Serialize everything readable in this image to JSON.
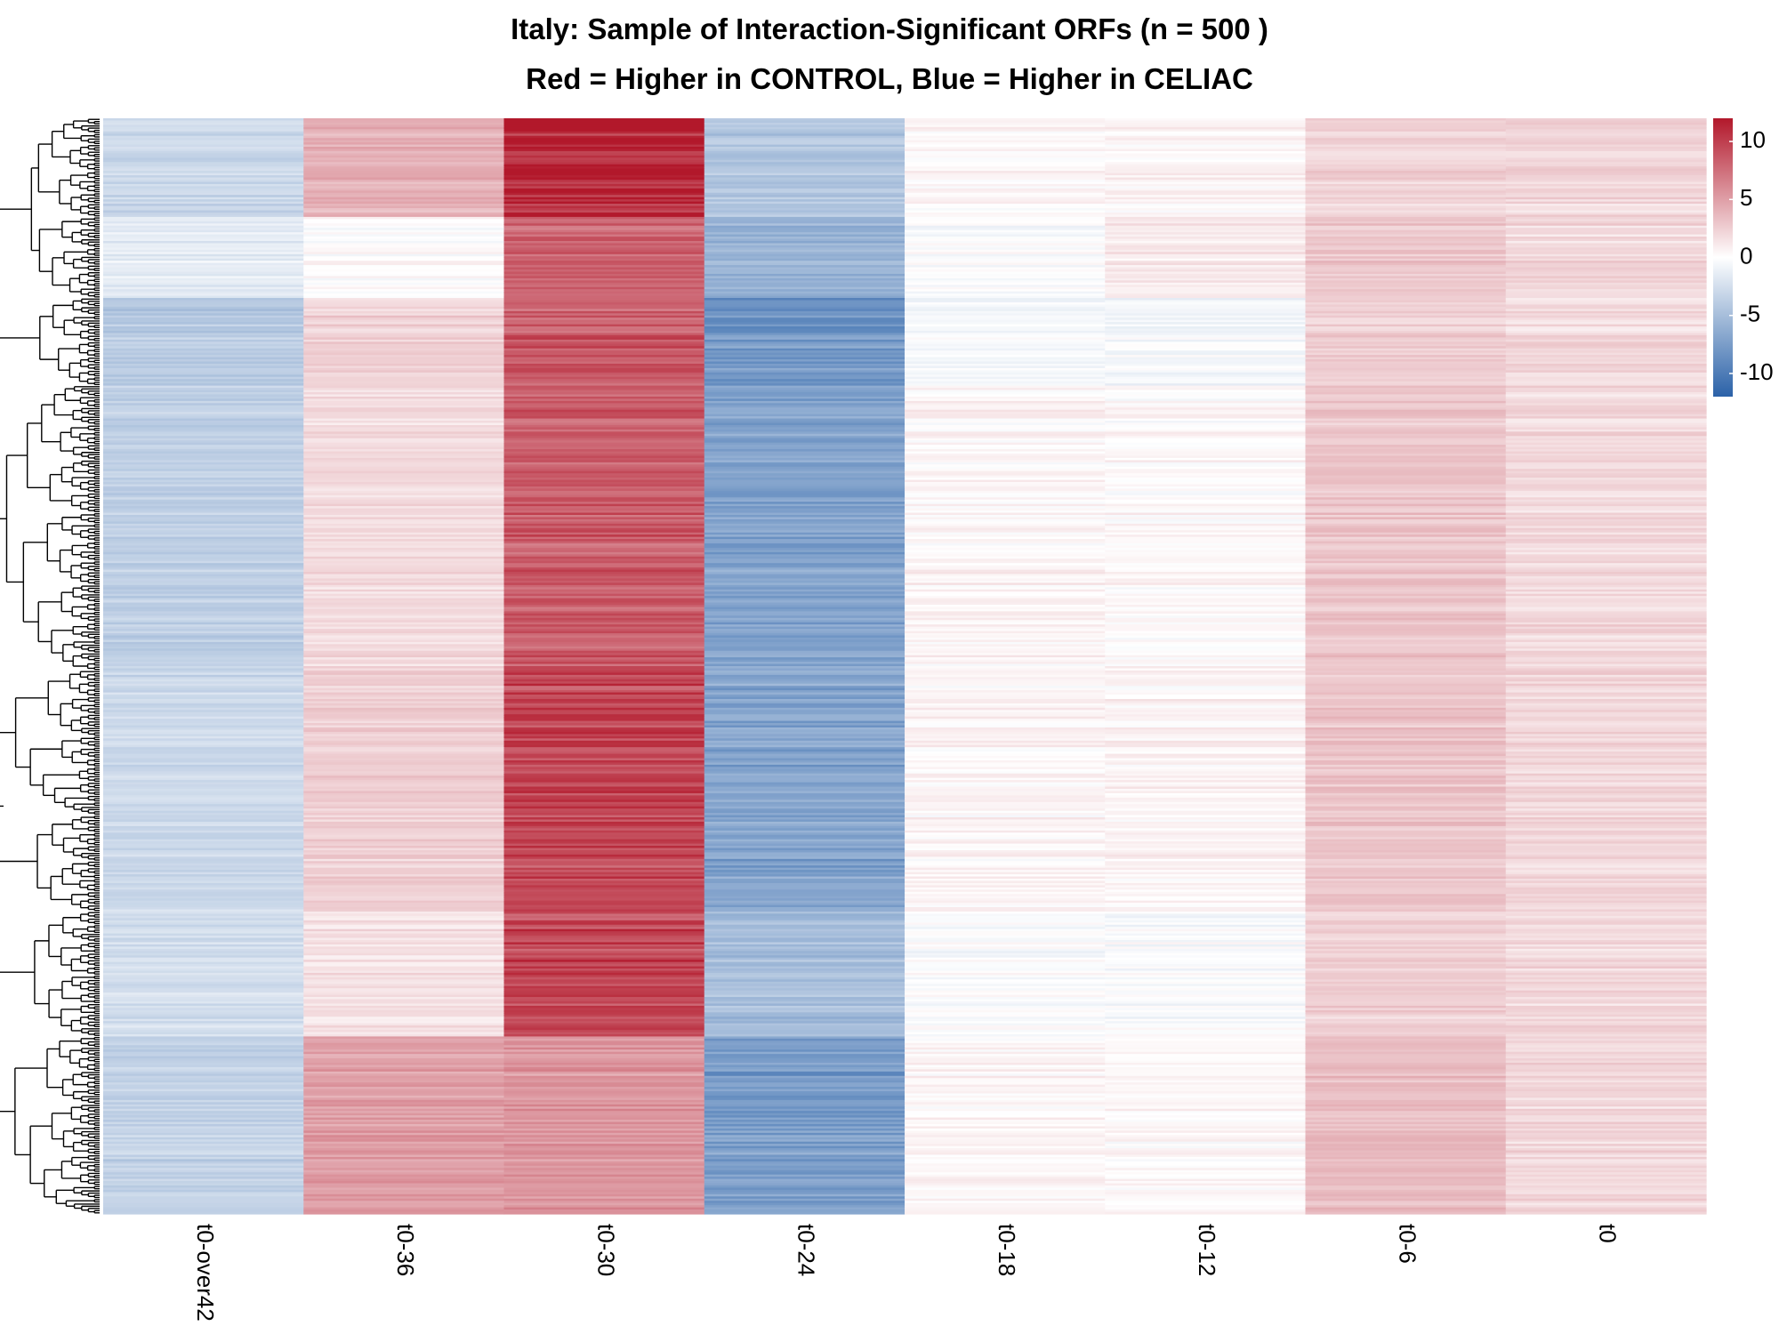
{
  "chart_data": {
    "type": "heatmap",
    "title": "Italy: Sample of Interaction-Significant ORFs (n = 500 )",
    "subtitle": "Red = Higher in CONTROL, Blue = Higher in CELIAC",
    "columns": [
      "t0-over42",
      "t0-36",
      "t0-30",
      "t0-24",
      "t0-18",
      "t0-12",
      "t0-6",
      "t0"
    ],
    "n_rows": 500,
    "color_scale": {
      "min": -12,
      "max": 12,
      "low_color": "#2b62a8",
      "mid_color": "#ffffff",
      "high_color": "#b2182b",
      "ticks": [
        10,
        5,
        0,
        -5,
        -10
      ],
      "tick_labels": [
        "10",
        "5",
        "0",
        "-5",
        "-10"
      ]
    },
    "row_clusters": [
      {
        "rows": 45,
        "values": [
          -3.0,
          4.0,
          11.0,
          -4.5,
          0.3,
          0.5,
          2.2,
          2.0
        ]
      },
      {
        "rows": 37,
        "values": [
          -1.5,
          0.0,
          8.0,
          -6.0,
          -0.3,
          1.0,
          2.8,
          2.0
        ]
      },
      {
        "rows": 40,
        "values": [
          -4.0,
          2.5,
          8.5,
          -8.0,
          -0.5,
          -0.5,
          2.5,
          2.0
        ]
      },
      {
        "rows": 130,
        "values": [
          -3.5,
          2.0,
          8.5,
          -7.0,
          0.5,
          0.3,
          3.0,
          2.0
        ]
      },
      {
        "rows": 110,
        "values": [
          -3.0,
          2.5,
          9.5,
          -7.0,
          0.5,
          0.5,
          3.0,
          2.0
        ]
      },
      {
        "rows": 57,
        "values": [
          -2.5,
          1.5,
          9.5,
          -5.0,
          -0.3,
          -0.3,
          2.5,
          2.0
        ]
      },
      {
        "rows": 81,
        "values": [
          -3.5,
          5.0,
          5.5,
          -7.5,
          0.5,
          0.3,
          3.5,
          2.0
        ]
      }
    ],
    "legend_position": "top-right"
  },
  "colors": {
    "dendrogram": "#000000",
    "background": "#ffffff"
  }
}
